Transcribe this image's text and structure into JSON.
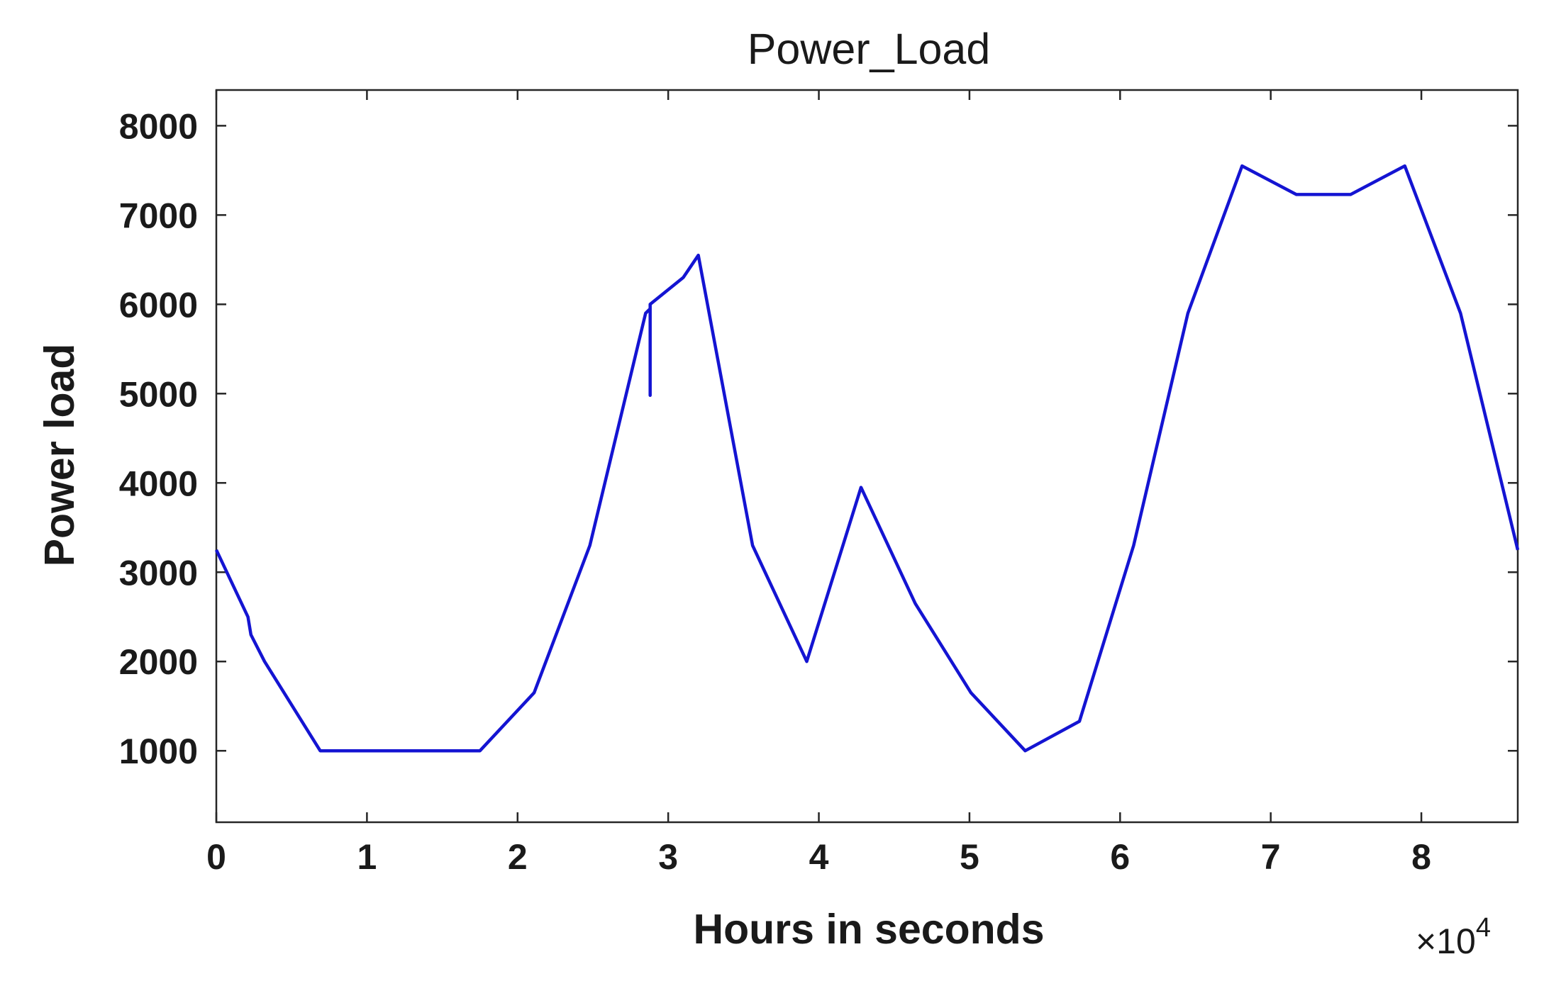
{
  "chart_data": {
    "type": "line",
    "title": "Power_Load",
    "xlabel": "Hours in seconds",
    "ylabel": "Power load",
    "x_exponent": {
      "times": "×10",
      "power": "4"
    },
    "xlim": [
      0,
      86400
    ],
    "ylim": [
      200,
      8400
    ],
    "x_ticks": [
      0,
      10000,
      20000,
      30000,
      40000,
      50000,
      60000,
      70000,
      80000
    ],
    "x_tick_labels": [
      "0",
      "1",
      "2",
      "3",
      "4",
      "5",
      "6",
      "7",
      "8"
    ],
    "y_ticks": [
      1000,
      2000,
      3000,
      4000,
      5000,
      6000,
      7000,
      8000
    ],
    "y_tick_labels": [
      "1000",
      "2000",
      "3000",
      "4000",
      "5000",
      "6000",
      "7000",
      "8000"
    ],
    "grid": false,
    "box": true,
    "series": [
      {
        "color": "#1414d2",
        "x": [
          0,
          2100,
          2300,
          3200,
          6900,
          17500,
          21100,
          24800,
          28500,
          28800,
          28800,
          28800,
          31000,
          32000,
          35600,
          39200,
          42800,
          46400,
          50100,
          53700,
          57300,
          60900,
          64500,
          68100,
          71700,
          75300,
          78900,
          82600,
          86400
        ],
        "y": [
          3250,
          2500,
          2300,
          2000,
          1000,
          1000,
          1650,
          3300,
          5900,
          5950,
          4980,
          6000,
          6300,
          6550,
          3300,
          2000,
          3950,
          2650,
          1650,
          1000,
          1330,
          3300,
          5900,
          7550,
          7230,
          7230,
          7550,
          5900,
          3250
        ]
      }
    ]
  }
}
